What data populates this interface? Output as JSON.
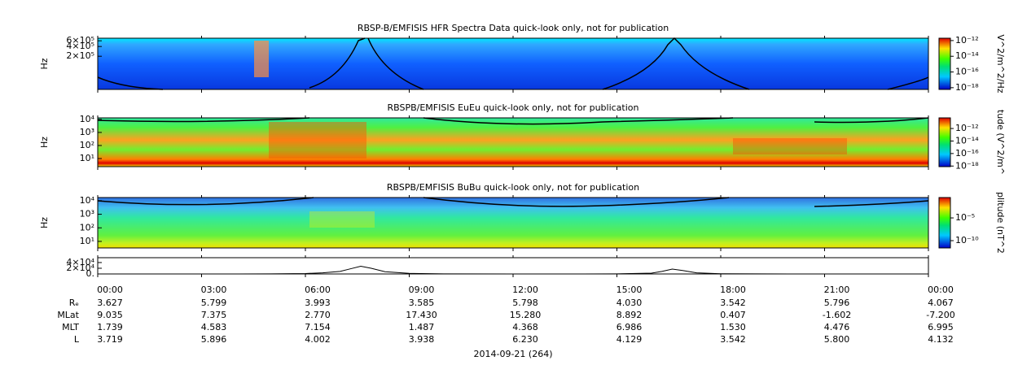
{
  "chart_data": [
    {
      "type": "spectrogram",
      "title": "RBSP-B/EMFISIS  HFR Spectra Data quick-look only, not for publication",
      "y_label": "Hz",
      "log_y": true,
      "ylim": [
        19000,
        720000
      ],
      "yticks": [
        {
          "value": 600000,
          "label": "6×10⁵"
        },
        {
          "value": 400000,
          "label": "4×10⁵"
        },
        {
          "value": 200000,
          "label": "2×10⁵"
        }
      ],
      "colorbar": {
        "label": "V^2/m^2/Hz",
        "lim": [
          6e-19,
          2e-12
        ],
        "ticks": [
          {
            "value": 1e-12,
            "label": "10⁻¹²"
          },
          {
            "value": 1e-14,
            "label": "10⁻¹⁴"
          },
          {
            "value": 1e-16,
            "label": "10⁻¹⁶"
          },
          {
            "value": 1e-18,
            "label": "10⁻¹⁸"
          }
        ]
      }
    },
    {
      "type": "spectrogram",
      "title": "RBSPB/EMFISIS  EuEu quick-look only, not for publication",
      "y_label": "Hz",
      "log_y": true,
      "ylim": [
        2.4,
        13000
      ],
      "yticks": [
        {
          "value": 10000,
          "label": "10⁴"
        },
        {
          "value": 1000,
          "label": "10³"
        },
        {
          "value": 100,
          "label": "10²"
        },
        {
          "value": 10,
          "label": "10¹"
        }
      ],
      "colorbar": {
        "label": "tude (V^2/m^",
        "lim": [
          8e-19,
          5e-11
        ],
        "ticks": [
          {
            "value": 1e-12,
            "label": "10⁻¹²"
          },
          {
            "value": 1e-14,
            "label": "10⁻¹⁴"
          },
          {
            "value": 1e-16,
            "label": "10⁻¹⁶"
          },
          {
            "value": 1e-18,
            "label": "10⁻¹⁸"
          }
        ]
      }
    },
    {
      "type": "spectrogram",
      "title": "RBSPB/EMFISIS  BuBu quick-look only, not for publication",
      "y_label": "Hz",
      "log_y": true,
      "ylim": [
        3.3,
        17000
      ],
      "yticks": [
        {
          "value": 10000,
          "label": "10⁴"
        },
        {
          "value": 1000,
          "label": "10³"
        },
        {
          "value": 100,
          "label": "10²"
        },
        {
          "value": 10,
          "label": "10¹"
        }
      ],
      "colorbar": {
        "label": "plitude (nT^2",
        "lim": [
          2.5e-12,
          0.3
        ],
        "ticks": [
          {
            "value": 1e-05,
            "label": "10⁻⁵"
          },
          {
            "value": 1e-10,
            "label": "10⁻¹⁰"
          }
        ]
      }
    },
    {
      "type": "line",
      "color": "#000000",
      "ylim": [
        0,
        57000
      ],
      "yticks": [
        {
          "value": 40000,
          "label": "4×10⁴"
        },
        {
          "value": 20000,
          "label": "2×10⁴"
        },
        {
          "value": 0,
          "label": "0."
        }
      ],
      "x": [
        0,
        2,
        4,
        5,
        6,
        6.5,
        7,
        7.3,
        7.6,
        7.9,
        8.3,
        9,
        10,
        12,
        14,
        15,
        16,
        16.3,
        16.6,
        16.9,
        17.3,
        18,
        20,
        22,
        24
      ],
      "values": [
        0,
        0,
        100,
        500,
        1500,
        4000,
        9000,
        18000,
        27000,
        20000,
        8000,
        2000,
        500,
        0,
        0,
        300,
        3000,
        9000,
        17000,
        12000,
        4000,
        800,
        100,
        0,
        0
      ],
      "xlim": [
        0,
        24
      ],
      "xticks": [
        {
          "value": 0,
          "label": "00:00"
        },
        {
          "value": 3,
          "label": "03:00"
        },
        {
          "value": 6,
          "label": "06:00"
        },
        {
          "value": 9,
          "label": "09:00"
        },
        {
          "value": 12,
          "label": "12:00"
        },
        {
          "value": 15,
          "label": "15:00"
        },
        {
          "value": 18,
          "label": "18:00"
        },
        {
          "value": 21,
          "label": "21:00"
        },
        {
          "value": 24,
          "label": "00:00"
        }
      ]
    }
  ],
  "ephemeris": {
    "rows": [
      {
        "label": "Rₑ",
        "values": [
          "3.627",
          "5.799",
          "3.993",
          "3.585",
          "5.798",
          "4.030",
          "3.542",
          "5.796",
          "4.067"
        ]
      },
      {
        "label": "MLat",
        "values": [
          "9.035",
          "7.375",
          "2.770",
          "17.430",
          "15.280",
          "8.892",
          "0.407",
          "-1.602",
          "-7.200"
        ]
      },
      {
        "label": "MLT",
        "values": [
          "1.739",
          "4.583",
          "7.154",
          "1.487",
          "4.368",
          "6.986",
          "1.530",
          "4.476",
          "6.995"
        ]
      },
      {
        "label": "L",
        "values": [
          "3.719",
          "5.896",
          "4.002",
          "3.938",
          "6.230",
          "4.129",
          "3.542",
          "5.800",
          "4.132"
        ]
      }
    ],
    "date": "2014-09-21 (264)"
  }
}
